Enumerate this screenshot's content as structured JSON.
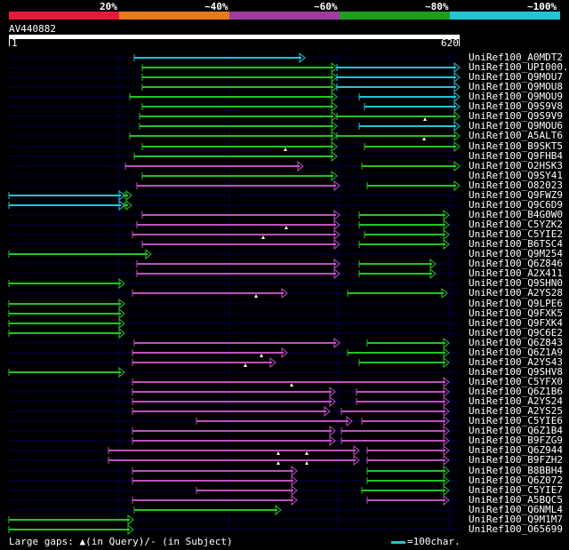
{
  "scale": {
    "labels": [
      "20%",
      "~40%",
      "~60%",
      "~80%",
      "~100%"
    ],
    "colors": [
      "#e8183c",
      "#e87a1e",
      "#a03ca0",
      "#1e9e1e",
      "#22c5d4"
    ]
  },
  "query": {
    "name": "AV440882",
    "start": "1",
    "end": "620"
  },
  "colors": {
    "cyan": "#22c5d4",
    "green": "#22c522",
    "magenta": "#c050c0",
    "gap_marker": "#ffffcc",
    "grid": "#000050"
  },
  "hits": [
    {
      "label": "UniRef100_A0MDT2",
      "segs": [
        [
          151,
          343,
          "cyan"
        ]
      ]
    },
    {
      "label": "UniRef100_UPI000..",
      "segs": [
        [
          160,
          379,
          "green"
        ],
        [
          379,
          517,
          "cyan"
        ]
      ]
    },
    {
      "label": "UniRef100_Q9MOU7",
      "segs": [
        [
          160,
          379,
          "green"
        ],
        [
          379,
          517,
          "cyan"
        ]
      ]
    },
    {
      "label": "UniRef100_Q9MOU8",
      "segs": [
        [
          160,
          379,
          "green"
        ],
        [
          379,
          517,
          "cyan"
        ]
      ]
    },
    {
      "label": "UniRef100_Q9MOU9",
      "segs": [
        [
          146,
          379,
          "green"
        ],
        [
          404,
          517,
          "cyan"
        ]
      ]
    },
    {
      "label": "UniRef100_Q9S9V8",
      "segs": [
        [
          160,
          379,
          "green"
        ],
        [
          410,
          517,
          "cyan"
        ]
      ]
    },
    {
      "label": "UniRef100_Q9S9V9",
      "segs": [
        [
          157,
          379,
          "green"
        ],
        [
          379,
          517,
          "green"
        ]
      ]
    },
    {
      "label": "UniRef100_Q9MOU6",
      "segs": [
        [
          157,
          379,
          "green"
        ],
        [
          404,
          517,
          "cyan"
        ]
      ]
    },
    {
      "label": "UniRef100_A5ALT6",
      "segs": [
        [
          146,
          379,
          "green"
        ],
        [
          379,
          517,
          "green"
        ]
      ]
    },
    {
      "label": "UniRef100_B9SKT5",
      "segs": [
        [
          160,
          379,
          "green"
        ],
        [
          410,
          517,
          "green"
        ]
      ]
    },
    {
      "label": "UniRef100_Q9FHB4",
      "segs": [
        [
          151,
          379,
          "green"
        ]
      ]
    },
    {
      "label": "UniRef100_O2HSK3",
      "segs": [
        [
          141,
          341,
          "magenta"
        ],
        [
          407,
          517,
          "green"
        ]
      ]
    },
    {
      "label": "UniRef100_Q9SY41",
      "segs": [
        [
          160,
          379,
          "green"
        ]
      ]
    },
    {
      "label": "UniRef100_O82023",
      "segs": [
        [
          154,
          382,
          "magenta"
        ],
        [
          413,
          517,
          "green"
        ]
      ]
    },
    {
      "label": "UniRef100_Q9FWZ9",
      "segs": [
        [
          10,
          140,
          "cyan"
        ],
        [
          140,
          148,
          "green"
        ]
      ]
    },
    {
      "label": "UniRef100_Q9C6D9",
      "segs": [
        [
          10,
          140,
          "cyan"
        ],
        [
          140,
          148,
          "green"
        ]
      ]
    },
    {
      "label": "UniRef100_B4G0W0",
      "segs": [
        [
          160,
          382,
          "magenta"
        ],
        [
          404,
          505,
          "green"
        ]
      ]
    },
    {
      "label": "UniRef100_C5YZK2",
      "segs": [
        [
          154,
          382,
          "magenta"
        ],
        [
          404,
          505,
          "green"
        ]
      ]
    },
    {
      "label": "UniRef100_C5YIE2",
      "segs": [
        [
          149,
          382,
          "magenta"
        ],
        [
          410,
          505,
          "green"
        ]
      ]
    },
    {
      "label": "UniRef100_B6TSC4",
      "segs": [
        [
          160,
          382,
          "magenta"
        ],
        [
          404,
          505,
          "green"
        ]
      ]
    },
    {
      "label": "UniRef100_Q9M254",
      "segs": [
        [
          10,
          170,
          "green"
        ]
      ]
    },
    {
      "label": "UniRef100_Q6Z846",
      "segs": [
        [
          154,
          382,
          "magenta"
        ],
        [
          404,
          490,
          "green"
        ]
      ]
    },
    {
      "label": "UniRef100_A2X411",
      "segs": [
        [
          154,
          382,
          "magenta"
        ],
        [
          404,
          490,
          "green"
        ]
      ]
    },
    {
      "label": "UniRef100_Q9SHN0",
      "segs": [
        [
          10,
          140,
          "green"
        ]
      ]
    },
    {
      "label": "UniRef100_A2YS28",
      "segs": [
        [
          149,
          323,
          "magenta"
        ],
        [
          391,
          503,
          "green"
        ]
      ]
    },
    {
      "label": "UniRef100_Q9LPE6",
      "segs": [
        [
          10,
          140,
          "green"
        ]
      ]
    },
    {
      "label": "UniRef100_Q9FXK5",
      "segs": [
        [
          10,
          140,
          "green"
        ]
      ]
    },
    {
      "label": "UniRef100_Q9FXK4",
      "segs": [
        [
          10,
          140,
          "green"
        ]
      ]
    },
    {
      "label": "UniRef100_Q9C6E2",
      "segs": [
        [
          10,
          140,
          "green"
        ]
      ]
    },
    {
      "label": "UniRef100_Q6Z843",
      "segs": [
        [
          151,
          382,
          "magenta"
        ],
        [
          413,
          505,
          "green"
        ]
      ]
    },
    {
      "label": "UniRef100_Q6Z1A9",
      "segs": [
        [
          149,
          323,
          "magenta"
        ],
        [
          391,
          505,
          "green"
        ]
      ]
    },
    {
      "label": "UniRef100_A2YS43",
      "segs": [
        [
          149,
          310,
          "magenta"
        ],
        [
          404,
          505,
          "green"
        ]
      ]
    },
    {
      "label": "UniRef100_Q9SHV8",
      "segs": [
        [
          10,
          140,
          "green"
        ]
      ]
    },
    {
      "label": "UniRef100_C5YFX0",
      "segs": [
        [
          149,
          505,
          "magenta"
        ]
      ]
    },
    {
      "label": "UniRef100_Q6Z1B6",
      "segs": [
        [
          149,
          377,
          "magenta"
        ],
        [
          401,
          505,
          "magenta"
        ]
      ]
    },
    {
      "label": "UniRef100_A2YS24",
      "segs": [
        [
          149,
          377,
          "magenta"
        ],
        [
          401,
          505,
          "magenta"
        ]
      ]
    },
    {
      "label": "UniRef100_A2YS25",
      "segs": [
        [
          149,
          371,
          "magenta"
        ],
        [
          384,
          505,
          "magenta"
        ]
      ]
    },
    {
      "label": "UniRef100_C5YIE6",
      "segs": [
        [
          221,
          396,
          "magenta"
        ],
        [
          407,
          505,
          "magenta"
        ]
      ]
    },
    {
      "label": "UniRef100_Q6Z1B4",
      "segs": [
        [
          149,
          377,
          "magenta"
        ],
        [
          384,
          505,
          "magenta"
        ]
      ]
    },
    {
      "label": "UniRef100_B9FZG9",
      "segs": [
        [
          149,
          377,
          "magenta"
        ],
        [
          384,
          505,
          "magenta"
        ]
      ]
    },
    {
      "label": "UniRef100_Q6Z944",
      "segs": [
        [
          122,
          404,
          "magenta"
        ],
        [
          413,
          505,
          "magenta"
        ]
      ]
    },
    {
      "label": "UniRef100_B9FZH2",
      "segs": [
        [
          122,
          404,
          "magenta"
        ],
        [
          413,
          505,
          "magenta"
        ]
      ]
    },
    {
      "label": "UniRef100_B8BBH4",
      "segs": [
        [
          149,
          334,
          "magenta"
        ],
        [
          413,
          505,
          "green"
        ]
      ]
    },
    {
      "label": "UniRef100_Q6Z072",
      "segs": [
        [
          149,
          334,
          "magenta"
        ],
        [
          413,
          505,
          "green"
        ]
      ]
    },
    {
      "label": "UniRef100_C5YIE7",
      "segs": [
        [
          221,
          334,
          "magenta"
        ],
        [
          407,
          505,
          "green"
        ]
      ]
    },
    {
      "label": "UniRef100_A5BQC5",
      "segs": [
        [
          149,
          334,
          "magenta"
        ],
        [
          413,
          505,
          "magenta"
        ]
      ]
    },
    {
      "label": "UniRef100_Q6NML4",
      "segs": [
        [
          151,
          316,
          "green"
        ]
      ]
    },
    {
      "label": "UniRef100_Q9M1M7",
      "segs": [
        [
          10,
          150,
          "green"
        ]
      ]
    },
    {
      "label": "UniRef100_O65699",
      "segs": [
        [
          10,
          150,
          "green"
        ]
      ]
    }
  ],
  "gap_markers": [
    [
      6,
      478
    ],
    [
      8,
      477
    ],
    [
      9,
      321
    ],
    [
      17,
      322
    ],
    [
      18,
      296
    ],
    [
      24,
      288
    ],
    [
      30,
      294
    ],
    [
      31,
      276
    ],
    [
      33,
      328
    ],
    [
      40,
      313
    ],
    [
      40,
      345
    ],
    [
      41,
      313
    ],
    [
      41,
      345
    ]
  ],
  "footer": {
    "text": "Large gaps: ▲(in Query)/- (in Subject)",
    "legend": "=100char."
  }
}
